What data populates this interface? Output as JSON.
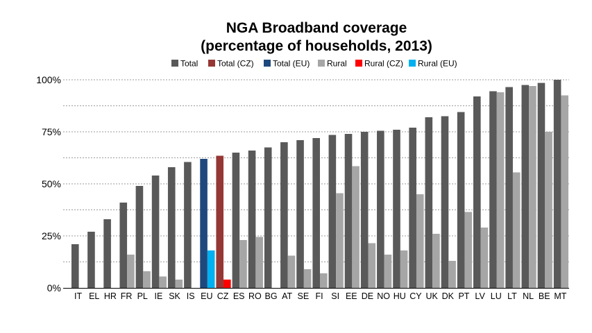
{
  "chart_data": {
    "type": "bar",
    "title_line1": "NGA Broadband coverage",
    "title_line2": "(percentage of households, 2013)",
    "xlabel": "",
    "ylabel": "",
    "ylim": [
      0,
      100
    ],
    "y_ticks": [
      {
        "value": 0,
        "label": "0%"
      },
      {
        "value": 25,
        "label": "25%"
      },
      {
        "value": 50,
        "label": "50%"
      },
      {
        "value": 75,
        "label": "75%"
      },
      {
        "value": 100,
        "label": "100%"
      }
    ],
    "minor_grid": [
      12.5,
      37.5,
      62.5,
      87.5
    ],
    "grid": true,
    "legend_position": "top",
    "legend": [
      {
        "name": "Total",
        "color": "#595959"
      },
      {
        "name": "Total (CZ)",
        "color": "#953735"
      },
      {
        "name": "Total (EU)",
        "color": "#1f497d"
      },
      {
        "name": "Rural",
        "color": "#a6a6a6"
      },
      {
        "name": "Rural (CZ)",
        "color": "#ff0000"
      },
      {
        "name": "Rural (EU)",
        "color": "#00b0f0"
      }
    ],
    "categories": [
      "IT",
      "EL",
      "HR",
      "FR",
      "PL",
      "IE",
      "SK",
      "IS",
      "EU",
      "CZ",
      "ES",
      "RO",
      "BG",
      "AT",
      "SE",
      "FI",
      "SI",
      "EE",
      "DE",
      "NO",
      "HU",
      "CY",
      "UK",
      "DK",
      "PT",
      "LV",
      "LU",
      "LT",
      "NL",
      "BE",
      "MT"
    ],
    "series": [
      {
        "name": "Total",
        "values": [
          21,
          27,
          33,
          41,
          49,
          54,
          58,
          60.5,
          62,
          63.5,
          65,
          66,
          67.5,
          70,
          71,
          72,
          73.5,
          74,
          75,
          75.5,
          76,
          77,
          82,
          82.5,
          84.5,
          92,
          94.5,
          96.5,
          97.5,
          98.5,
          100
        ]
      },
      {
        "name": "Rural",
        "values": [
          0,
          0,
          0,
          16,
          8,
          5.5,
          4,
          0,
          18,
          4,
          23,
          24.5,
          0,
          15.5,
          9,
          7,
          45.5,
          58.5,
          21.5,
          16,
          18,
          45,
          26,
          13,
          36.5,
          29,
          94,
          55.5,
          97,
          75,
          92.5
        ]
      }
    ],
    "highlight_colors": {
      "EU": {
        "total": "#1f497d",
        "rural": "#00b0f0"
      },
      "CZ": {
        "total": "#953735",
        "rural": "#ff0000"
      }
    }
  }
}
